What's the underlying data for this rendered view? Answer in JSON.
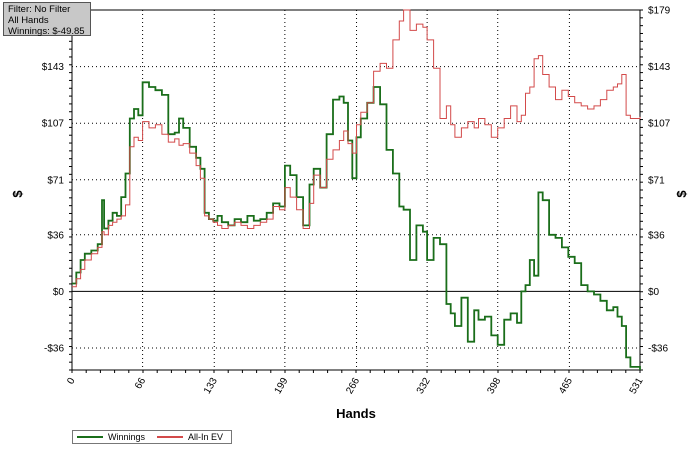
{
  "info_box": {
    "filter": "Filter: No Filter",
    "hands": "All Hands",
    "winnings": "Winnings: $-49.85"
  },
  "colors": {
    "winnings": "#1a6e1a",
    "allin_ev": "#d34a4a",
    "grid": "#000000",
    "zero_line": "#000000",
    "axis_text": "#000000"
  },
  "chart_data": {
    "type": "line",
    "xlabel": "Hands",
    "ylabel": "$",
    "y2label": "$",
    "xlim": [
      0,
      531
    ],
    "ylim": [
      -50,
      179
    ],
    "x_ticks": [
      0,
      66,
      133,
      199,
      266,
      332,
      398,
      465,
      531
    ],
    "y_ticks": [
      -36,
      0,
      36,
      71,
      107,
      143,
      179
    ],
    "y_tick_labels": [
      "-$36",
      "$0",
      "$36",
      "$71",
      "$107",
      "$143",
      "$179"
    ],
    "grid": true,
    "legend_position": "bottom-left",
    "series": [
      {
        "name": "Winnings",
        "color": "#1a6e1a",
        "x": [
          0,
          4,
          8,
          12,
          18,
          24,
          28,
          30,
          34,
          38,
          42,
          46,
          50,
          54,
          58,
          62,
          66,
          72,
          78,
          84,
          90,
          96,
          100,
          104,
          110,
          116,
          120,
          124,
          128,
          132,
          136,
          140,
          146,
          152,
          158,
          164,
          170,
          176,
          182,
          188,
          194,
          199,
          204,
          210,
          216,
          222,
          226,
          232,
          238,
          244,
          250,
          254,
          258,
          262,
          266,
          270,
          276,
          282,
          288,
          294,
          300,
          306,
          310,
          316,
          322,
          328,
          332,
          338,
          344,
          350,
          354,
          358,
          364,
          370,
          376,
          380,
          386,
          392,
          398,
          404,
          410,
          416,
          420,
          424,
          428,
          432,
          436,
          440,
          446,
          452,
          458,
          464,
          470,
          476,
          482,
          488,
          494,
          500,
          506,
          510,
          514,
          518,
          522,
          526,
          531
        ],
        "y": [
          5,
          12,
          20,
          24,
          26,
          30,
          58,
          40,
          45,
          50,
          48,
          60,
          75,
          110,
          116,
          112,
          133,
          130,
          128,
          125,
          100,
          101,
          110,
          104,
          92,
          85,
          78,
          50,
          46,
          45,
          48,
          44,
          42,
          46,
          44,
          48,
          45,
          46,
          50,
          56,
          54,
          80,
          74,
          60,
          42,
          68,
          78,
          66,
          100,
          122,
          124,
          120,
          96,
          72,
          98,
          110,
          120,
          130,
          119,
          90,
          75,
          54,
          52,
          20,
          42,
          38,
          20,
          34,
          30,
          -8,
          -14,
          -22,
          -4,
          -32,
          -12,
          -18,
          -16,
          -28,
          -34,
          -18,
          -14,
          -20,
          0,
          4,
          20,
          10,
          63,
          58,
          36,
          34,
          28,
          22,
          18,
          4,
          0,
          -2,
          -6,
          -12,
          -10,
          -16,
          -22,
          -42,
          -48,
          -48,
          -50
        ]
      },
      {
        "name": "All-In EV",
        "color": "#d34a4a",
        "x": [
          0,
          4,
          8,
          12,
          18,
          24,
          28,
          30,
          34,
          38,
          42,
          46,
          50,
          54,
          58,
          62,
          66,
          72,
          78,
          84,
          90,
          96,
          100,
          104,
          110,
          116,
          120,
          124,
          128,
          132,
          136,
          140,
          146,
          152,
          158,
          164,
          170,
          176,
          182,
          188,
          194,
          199,
          204,
          210,
          216,
          222,
          226,
          232,
          238,
          244,
          250,
          254,
          258,
          262,
          266,
          270,
          276,
          282,
          288,
          294,
          300,
          306,
          310,
          316,
          322,
          328,
          332,
          338,
          344,
          350,
          354,
          358,
          364,
          370,
          376,
          380,
          386,
          392,
          398,
          404,
          410,
          416,
          420,
          424,
          428,
          432,
          436,
          440,
          446,
          452,
          458,
          464,
          470,
          476,
          482,
          488,
          494,
          500,
          506,
          510,
          514,
          518,
          522,
          526,
          531
        ],
        "y": [
          3,
          8,
          14,
          20,
          24,
          28,
          38,
          36,
          42,
          44,
          46,
          48,
          55,
          92,
          98,
          96,
          108,
          104,
          106,
          100,
          95,
          97,
          93,
          94,
          88,
          80,
          72,
          48,
          46,
          44,
          42,
          40,
          42,
          44,
          42,
          40,
          42,
          44,
          46,
          54,
          52,
          66,
          60,
          52,
          40,
          56,
          74,
          66,
          84,
          90,
          96,
          102,
          94,
          88,
          106,
          114,
          120,
          140,
          145,
          142,
          160,
          172,
          184,
          166,
          170,
          168,
          160,
          142,
          110,
          118,
          106,
          98,
          104,
          108,
          104,
          110,
          106,
          98,
          104,
          110,
          118,
          108,
          112,
          126,
          130,
          148,
          150,
          138,
          130,
          122,
          128,
          124,
          120,
          118,
          116,
          118,
          122,
          128,
          130,
          132,
          138,
          112,
          110,
          110,
          111
        ]
      }
    ]
  },
  "legend": {
    "winnings_label": "Winnings",
    "allin_ev_label": "All-In EV"
  }
}
